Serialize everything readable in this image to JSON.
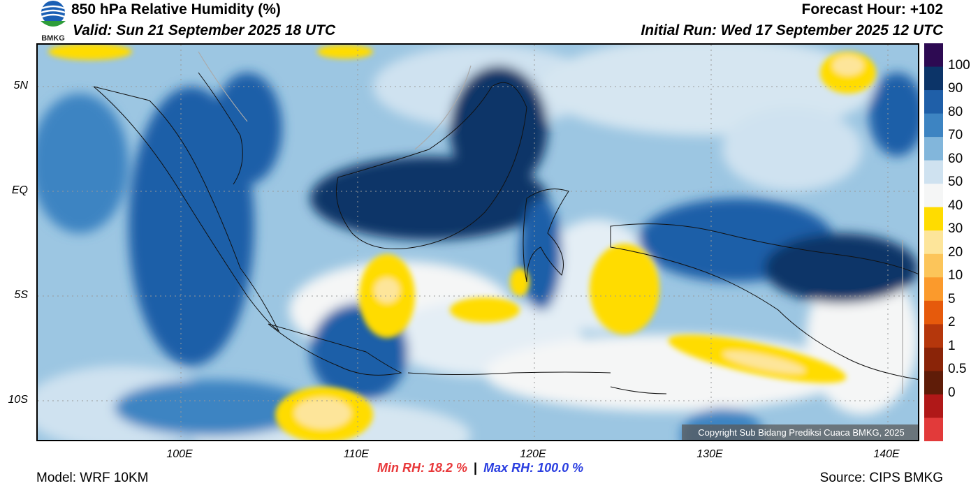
{
  "header": {
    "title": "850 hPa Relative Humidity (%)",
    "valid": "Valid: Sun 21 September 2025 18 UTC",
    "forecast_hour": "Forecast Hour: +102",
    "initial_run": "Initial Run: Wed 17 September 2025 12 UTC",
    "logo_text": "BMKG"
  },
  "map": {
    "lat_ticks": [
      "5N",
      "EQ",
      "5S",
      "10S"
    ],
    "lon_ticks": [
      "100E",
      "110E",
      "120E",
      "130E",
      "140E"
    ],
    "copyright": "Copyright Sub Bidang Prediksi Cuaca BMKG, 2025"
  },
  "colorbar": {
    "labels": [
      "100",
      "90",
      "80",
      "70",
      "60",
      "50",
      "40",
      "30",
      "20",
      "10",
      "5",
      "2",
      "1",
      "0.5",
      "0"
    ],
    "colors": [
      "#2d0a52",
      "#0c3468",
      "#1f5fa8",
      "#3d84c2",
      "#82b6db",
      "#cfe2f0",
      "#f5f6f6",
      "#ffdc00",
      "#fde59a",
      "#fcc55a",
      "#fb9a2c",
      "#e65a0c",
      "#b5370c",
      "#8a2408",
      "#5f1c08",
      "#b01818",
      "#e23a3a"
    ]
  },
  "footer": {
    "model": "Model: WRF 10KM",
    "min_rh": "Min RH:  18.2 %",
    "separator": "|",
    "max_rh": "Max RH: 100.0 %",
    "source": "Source: CIPS BMKG"
  },
  "colors": {
    "min_rh": "#e8383a",
    "max_rh": "#2a3ee0"
  }
}
